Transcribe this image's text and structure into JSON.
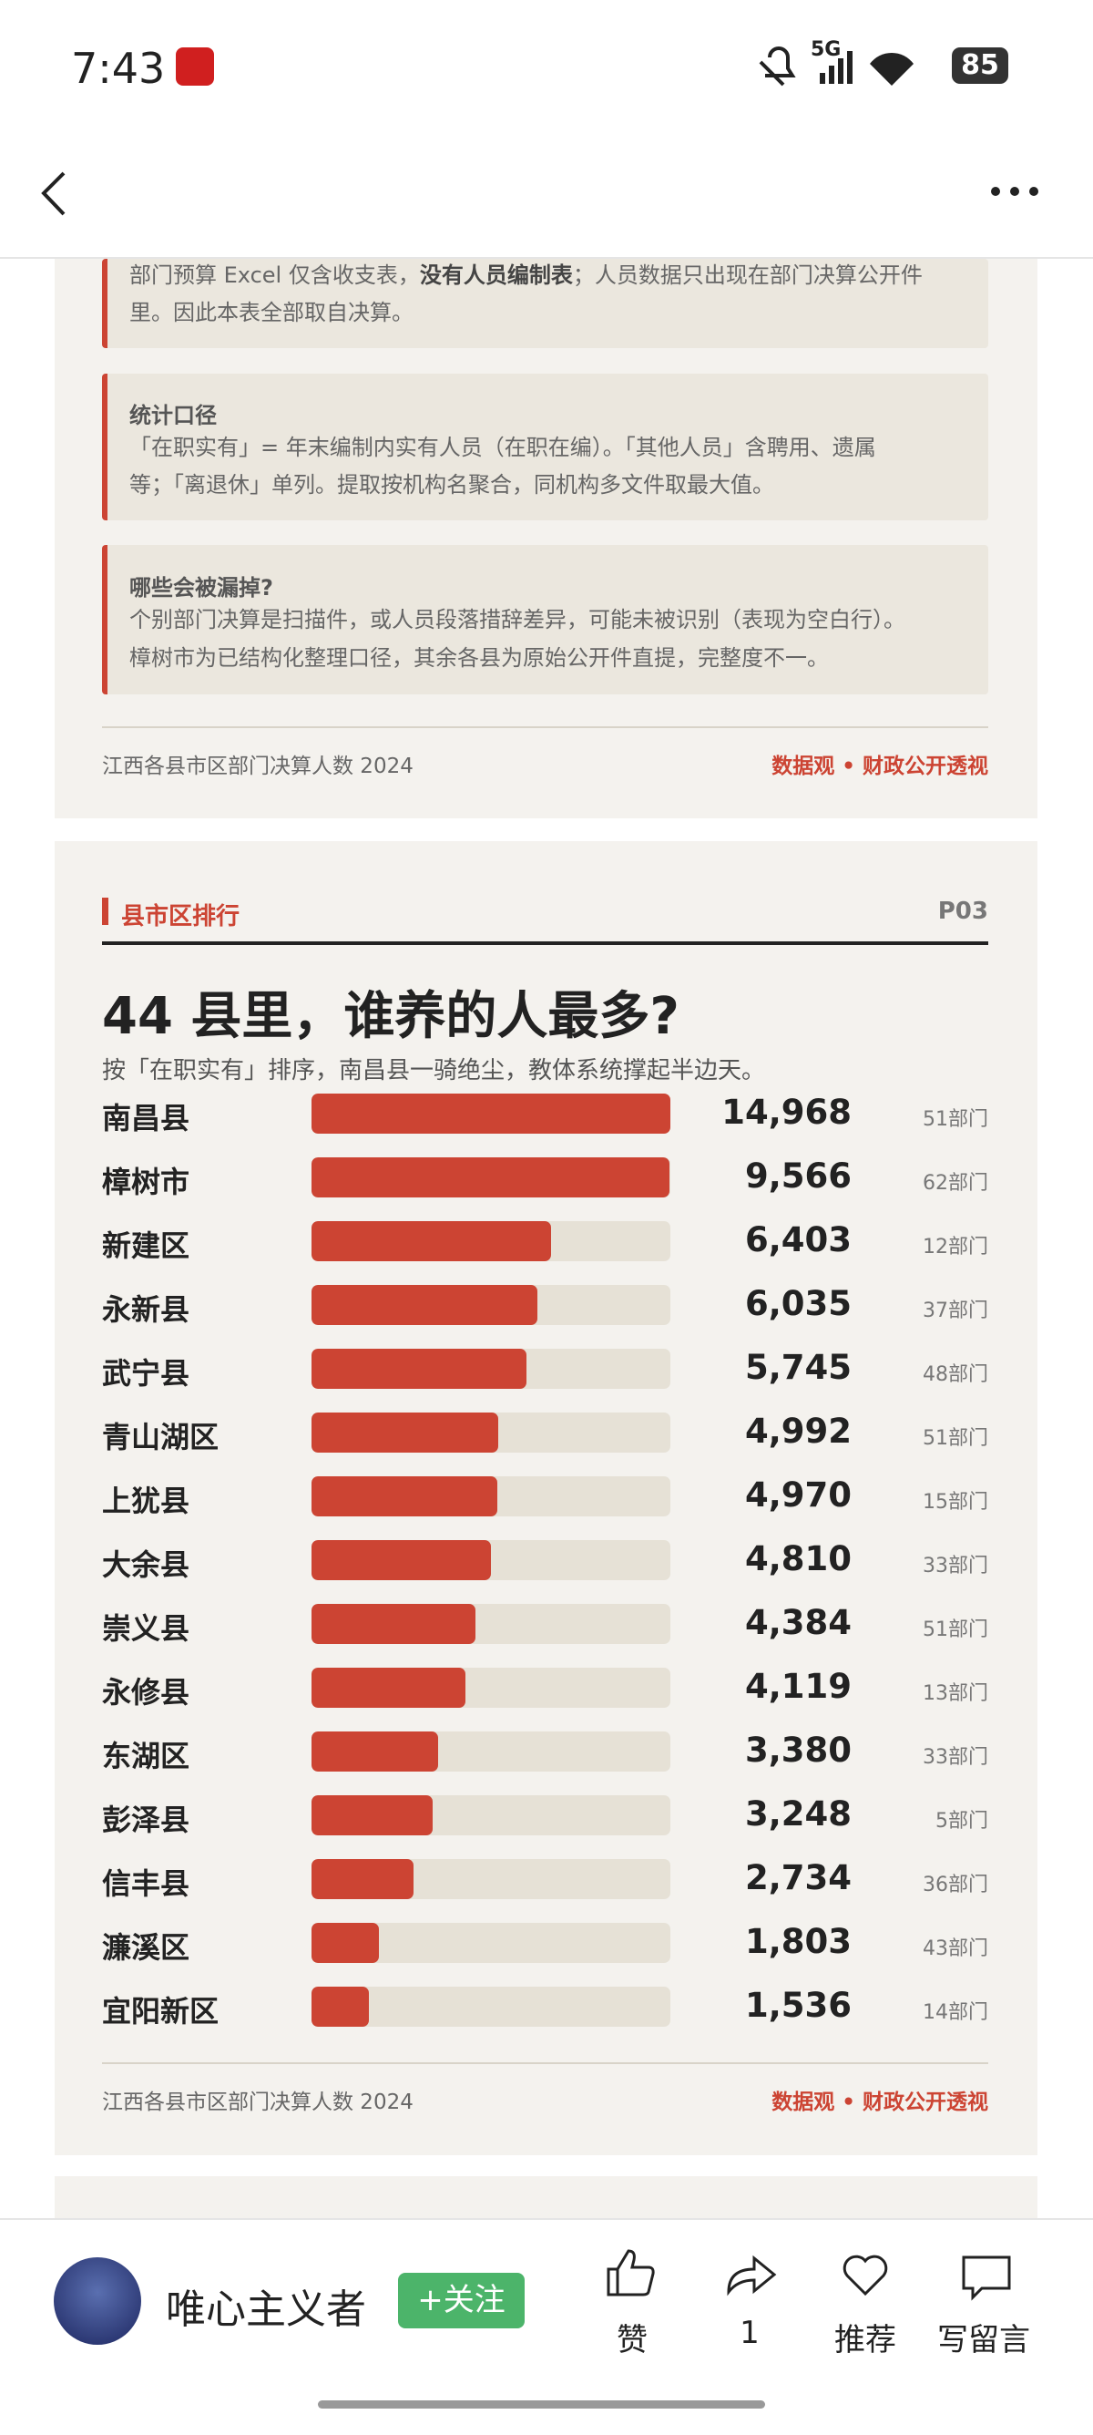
{
  "status_bar": {
    "time": "7:43",
    "network": "5G",
    "battery": "85"
  },
  "notes": [
    {
      "lines": [
        [
          "部门预算 Excel 仅含收支表，",
          "没有人员编制表",
          "；人员数据只出现在部门决算公开件"
        ],
        [
          "里。因此本表全部取自决算。"
        ]
      ]
    },
    {
      "title": "统计口径",
      "lines": [
        [
          "「在职实有」= 年末编制内实有人员（在职在编）。「其他人员」含聘用、遗属"
        ],
        [
          "等；「离退休」单列。提取按机构名聚合，同机构多文件取最大值。"
        ]
      ]
    },
    {
      "title": "哪些会被漏掉?",
      "lines": [
        [
          "个别部门决算是扫描件，或人员段落措辞差异，可能未被识别（表现为空白行）。"
        ],
        [
          "樟树市为已结构化整理口径，其余各县为原始公开件直提，完整度不一。"
        ]
      ]
    }
  ],
  "card1_footer": {
    "source": "江西各县市区部门决算人数 2024",
    "brand": "数据观 • 财政公开透视"
  },
  "ranking": {
    "section": "县市区排行",
    "page": "P03",
    "title": "44 县里，谁养的人最多?",
    "subtitle": "按「在职实有」排序，南昌县一骑绝尘，教体系统撑起半边天。",
    "categories": [
      "南昌县",
      "樟树市",
      "新建区",
      "永新县",
      "武宁县",
      "青山湖区",
      "上犹县",
      "大余县",
      "崇义县",
      "永修县",
      "东湖区",
      "彭泽县",
      "信丰县",
      "濂溪区",
      "宜阳新区"
    ],
    "values": [
      14968,
      9566,
      6403,
      6035,
      5745,
      4992,
      4970,
      4810,
      4384,
      4119,
      3380,
      3248,
      2734,
      1803,
      1536
    ],
    "value_labels": [
      "14,968",
      "9,566",
      "6,403",
      "6,035",
      "5,745",
      "4,992",
      "4,970",
      "4,810",
      "4,384",
      "4,119",
      "3,380",
      "3,248",
      "2,734",
      "1,803",
      "1,536"
    ],
    "dept_labels": [
      "51部门",
      "62部门",
      "12部门",
      "37部门",
      "48部门",
      "51部门",
      "15部门",
      "33部门",
      "51部门",
      "13部门",
      "33部门",
      "5部门",
      "36部门",
      "43部门",
      "14部门"
    ],
    "xlim": [
      0,
      9600
    ],
    "color": "#cc4433",
    "footer": {
      "source": "江西各县市区部门决算人数 2024",
      "brand": "数据观 • 财政公开透视"
    }
  },
  "bottom_bar": {
    "author": "唯心主义者",
    "follow": "+关注",
    "actions": [
      "赞",
      "1",
      "推荐",
      "写留言"
    ]
  }
}
